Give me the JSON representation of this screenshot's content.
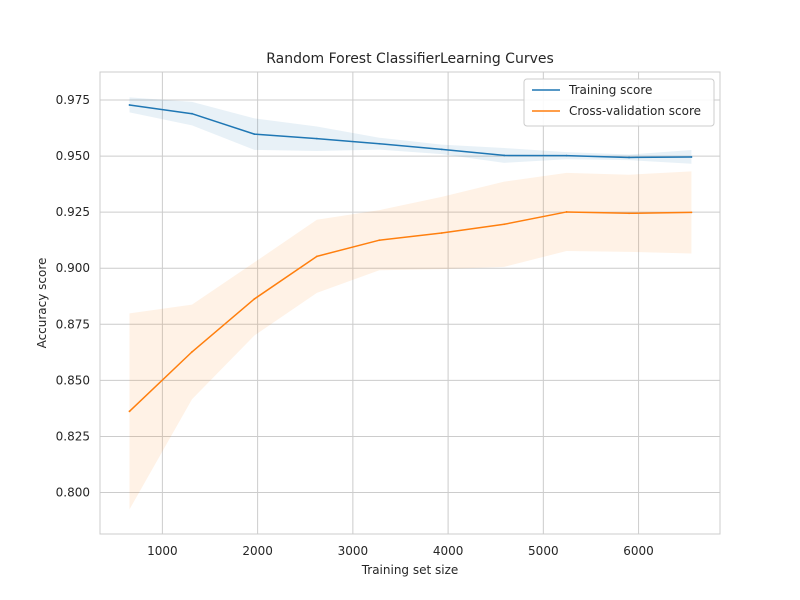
{
  "chart_data": {
    "type": "line",
    "title": "Random Forest ClassifierLearning Curves",
    "xlabel": "Training set size",
    "ylabel": "Accuracy score",
    "xlim": [
      345,
      6855
    ],
    "ylim": [
      0.7815,
      0.9875
    ],
    "xticks": [
      1000,
      2000,
      3000,
      4000,
      5000,
      6000
    ],
    "yticks": [
      0.8,
      0.825,
      0.85,
      0.875,
      0.9,
      0.925,
      0.95,
      0.975
    ],
    "x": [
      655,
      1311,
      1966,
      2622,
      3278,
      3933,
      4589,
      5244,
      5900,
      6555
    ],
    "grid": true,
    "legend_position": "top-right",
    "series": [
      {
        "name": "Training score",
        "color": "#1f77b4",
        "values": [
          0.9728,
          0.9689,
          0.9598,
          0.9578,
          0.9555,
          0.953,
          0.9503,
          0.9502,
          0.9494,
          0.9496
        ],
        "band_lower": [
          0.9695,
          0.9637,
          0.9528,
          0.9523,
          0.9529,
          0.9509,
          0.947,
          0.9486,
          0.9482,
          0.9466
        ],
        "band_upper": [
          0.9762,
          0.9742,
          0.9668,
          0.9632,
          0.9582,
          0.9551,
          0.9536,
          0.9518,
          0.9507,
          0.9527
        ]
      },
      {
        "name": "Cross-validation score",
        "color": "#ff7f0e",
        "values": [
          0.8362,
          0.8627,
          0.8863,
          0.9053,
          0.9125,
          0.9157,
          0.9196,
          0.9251,
          0.9245,
          0.9249
        ],
        "band_lower": [
          0.7925,
          0.8416,
          0.87,
          0.889,
          0.8991,
          0.8996,
          0.9006,
          0.9077,
          0.9073,
          0.9066
        ],
        "band_upper": [
          0.8799,
          0.8838,
          0.9026,
          0.9216,
          0.9259,
          0.9318,
          0.9386,
          0.9425,
          0.9417,
          0.9432
        ]
      }
    ]
  }
}
